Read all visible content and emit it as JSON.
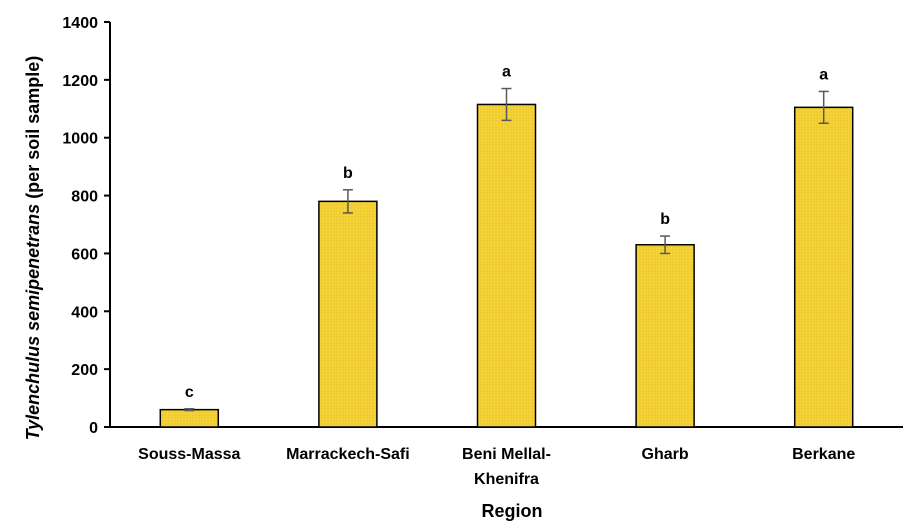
{
  "chart_data": {
    "type": "bar",
    "xlabel": "Region",
    "ylabel_italic": "Tylenchulus semipenetrans",
    "ylabel_rest": " (per soil sample)",
    "categories": [
      "Souss-Massa",
      "Marrackech-Safi",
      "Beni Mellal-Khenifra",
      "Gharb",
      "Berkane"
    ],
    "category_lines": [
      [
        "Souss-Massa"
      ],
      [
        "Marrackech-Safi"
      ],
      [
        "Beni Mellal-",
        "Khenifra"
      ],
      [
        "Gharb"
      ],
      [
        "Berkane"
      ]
    ],
    "values": [
      60,
      780,
      1115,
      630,
      1105
    ],
    "errors": [
      3,
      40,
      55,
      30,
      55
    ],
    "significance": [
      "c",
      "b",
      "a",
      "b",
      "a"
    ],
    "ylim": [
      0,
      1400
    ],
    "yticks": [
      0,
      200,
      400,
      600,
      800,
      1000,
      1200,
      1400
    ],
    "grid": false,
    "bar_color": "#F5D33A",
    "bar_edge_color": "#000000",
    "error_bar_color": "#595959"
  }
}
